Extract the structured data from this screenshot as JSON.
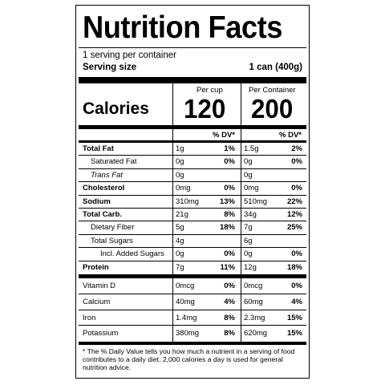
{
  "label": {
    "title": "Nutrition Facts",
    "servings_per_container": "1 serving per container",
    "serving_size_label": "Serving size",
    "serving_size_value": "1 can (400g)",
    "calories_label": "Calories",
    "col1_header": "Per cup",
    "col2_header": "Per Container",
    "calories_col1": "120",
    "calories_col2": "200",
    "dv_header": "% DV*",
    "nutrients": [
      {
        "name": "Total Fat",
        "bold": true,
        "a1": "1g",
        "d1": "1%",
        "a2": "1.5g",
        "d2": "2%"
      },
      {
        "name": "Saturated Fat",
        "bold": false,
        "a1": "0g",
        "d1": "0%",
        "a2": "0g",
        "d2": "0%"
      },
      {
        "name": "Trans Fat",
        "bold": false,
        "a1": "0g",
        "d1": "",
        "a2": "0g",
        "d2": ""
      },
      {
        "name": "Cholesterol",
        "bold": true,
        "a1": "0mg",
        "d1": "0%",
        "a2": "0mg",
        "d2": "0%"
      },
      {
        "name": "Sodium",
        "bold": true,
        "a1": "310mg",
        "d1": "13%",
        "a2": "510mg",
        "d2": "22%"
      },
      {
        "name": "Total Carb.",
        "bold": true,
        "a1": "21g",
        "d1": "8%",
        "a2": "34g",
        "d2": "12%"
      },
      {
        "name": "Dietary Fiber",
        "bold": false,
        "a1": "5g",
        "d1": "18%",
        "a2": "7g",
        "d2": "25%"
      },
      {
        "name": "Total Sugars",
        "bold": false,
        "a1": "4g",
        "d1": "",
        "a2": "6g",
        "d2": ""
      },
      {
        "name": "Incl. Added Sugars",
        "bold": false,
        "a1": "0g",
        "d1": "0%",
        "a2": "0g",
        "d2": "0%"
      },
      {
        "name": "Protein",
        "bold": true,
        "a1": "7g",
        "d1": "11%",
        "a2": "12g",
        "d2": "18%"
      }
    ],
    "vitamins": [
      {
        "name": "Vitamin D",
        "a1": "0mcg",
        "d1": "0%",
        "a2": "0mcg",
        "d2": "0%"
      },
      {
        "name": "Calcium",
        "a1": "40mg",
        "d1": "4%",
        "a2": "60mg",
        "d2": "4%"
      },
      {
        "name": "Iron",
        "a1": "1.4mg",
        "d1": "8%",
        "a2": "2.3mg",
        "d2": "15%"
      },
      {
        "name": "Potassium",
        "a1": "380mg",
        "d1": "8%",
        "a2": "620mg",
        "d2": "15%"
      }
    ],
    "footnote": "* The % Daily Value tells you how much a nutrient in a serving of food contributes to a daily diet. 2,000 calories a day is used for general nutrition advice."
  }
}
